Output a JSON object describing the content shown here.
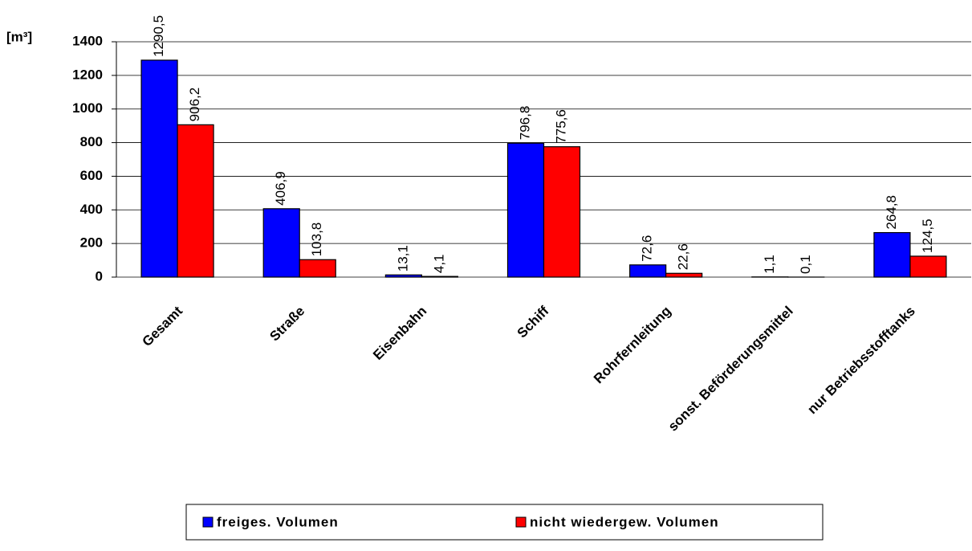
{
  "chart_data": {
    "type": "bar",
    "y_label": "[m³]",
    "categories": [
      "Gesamt",
      "Straße",
      "Eisenbahn",
      "Schiff",
      "Rohrfernleitung",
      "sonst. Beförderungsmittel",
      "nur Betriebsstofftanks"
    ],
    "series": [
      {
        "name": "freiges. Volumen",
        "color": "#0000ff",
        "values": [
          1290.5,
          406.9,
          13.1,
          796.8,
          72.6,
          1.1,
          264.8
        ],
        "value_labels": [
          "1290,5",
          "406,9",
          "13,1",
          "796,8",
          "72,6",
          "1,1",
          "264,8"
        ]
      },
      {
        "name": "nicht wiedergew. Volumen",
        "color": "#ff0000",
        "values": [
          906.2,
          103.8,
          4.1,
          775.6,
          22.6,
          0.1,
          124.5
        ],
        "value_labels": [
          "906,2",
          "103,8",
          "4,1",
          "775,6",
          "22,6",
          "0,1",
          "124,5"
        ]
      }
    ],
    "ylim": [
      0,
      1400
    ],
    "yticks": [
      0,
      200,
      400,
      600,
      800,
      1000,
      1200,
      1400
    ],
    "grid": true,
    "legend": "bottom"
  }
}
